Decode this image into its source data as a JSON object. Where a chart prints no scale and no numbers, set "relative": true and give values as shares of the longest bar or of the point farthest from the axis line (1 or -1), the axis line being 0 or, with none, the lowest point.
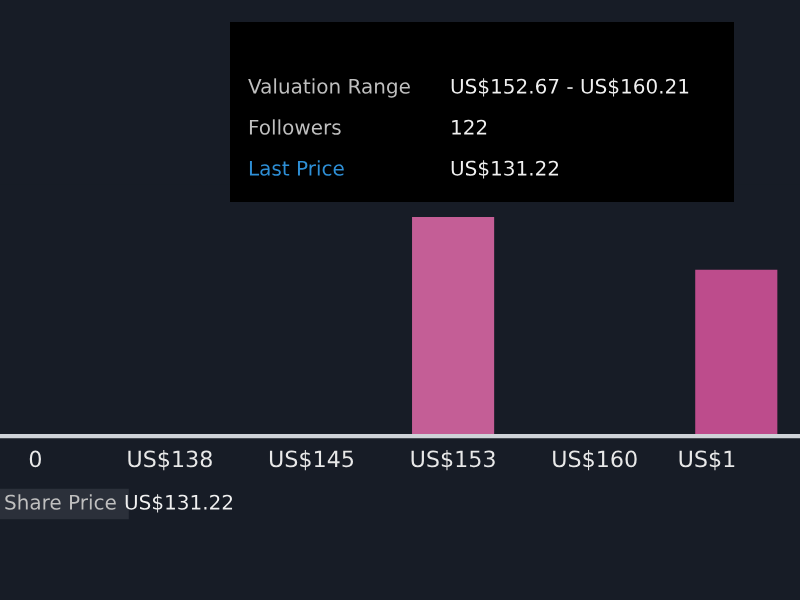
{
  "chart_data": {
    "type": "bar",
    "relative": true,
    "categories": [
      "0",
      "US$138",
      "US$145",
      "US$153",
      "US$160",
      "US$1"
    ],
    "values": [
      0,
      0,
      0,
      1,
      0,
      0.76
    ],
    "colors": [
      "#c45e96",
      "#c45e96",
      "#c45e96",
      "#c45e96",
      "#c45e96",
      "#bd4c8c"
    ],
    "annotations": [
      "Valuation Range",
      "US$152.67 - US$160.21",
      "Followers",
      "122",
      "Last Price",
      "US$131.22",
      "Share Price",
      "US$131.22"
    ],
    "grid": false,
    "legend": false
  }
}
